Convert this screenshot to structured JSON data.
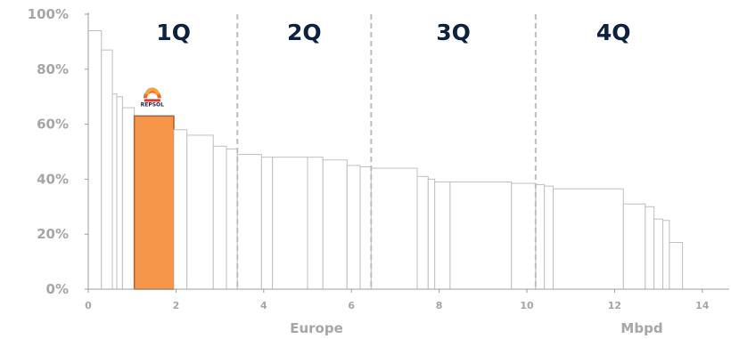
{
  "chart_data": {
    "type": "bar",
    "subtype": "variable-width cost curve (marimekko)",
    "xlabel": "Mbpd",
    "xlabel_secondary": "Europe",
    "x_ticks": [
      0,
      2,
      4,
      6,
      8,
      10,
      12,
      14
    ],
    "xlim": [
      0,
      14.5
    ],
    "y_ticks": [
      "0%",
      "20%",
      "40%",
      "60%",
      "80%",
      "100%"
    ],
    "ylim": [
      0,
      100
    ],
    "grid": false,
    "highlight_color": "#f5964b",
    "quartiles": [
      {
        "label": "1Q",
        "end_x": 3.4
      },
      {
        "label": "2Q",
        "end_x": 6.45
      },
      {
        "label": "3Q",
        "end_x": 10.2
      },
      {
        "label": "4Q",
        "end_x": 14.5
      }
    ],
    "logo": {
      "text": "REPSOL",
      "x": 1.5
    },
    "bars": [
      {
        "x0": 0.0,
        "x1": 0.3,
        "value": 94
      },
      {
        "x0": 0.3,
        "x1": 0.55,
        "value": 87
      },
      {
        "x0": 0.55,
        "x1": 0.65,
        "value": 71
      },
      {
        "x0": 0.65,
        "x1": 0.78,
        "value": 70
      },
      {
        "x0": 0.78,
        "x1": 1.05,
        "value": 66
      },
      {
        "x0": 1.05,
        "x1": 1.95,
        "value": 63,
        "highlight": true
      },
      {
        "x0": 1.95,
        "x1": 2.25,
        "value": 58
      },
      {
        "x0": 2.25,
        "x1": 2.85,
        "value": 56
      },
      {
        "x0": 2.85,
        "x1": 3.15,
        "value": 52
      },
      {
        "x0": 3.15,
        "x1": 3.4,
        "value": 51
      },
      {
        "x0": 3.4,
        "x1": 3.95,
        "value": 49
      },
      {
        "x0": 3.95,
        "x1": 4.2,
        "value": 48
      },
      {
        "x0": 4.2,
        "x1": 5.0,
        "value": 48
      },
      {
        "x0": 5.0,
        "x1": 5.35,
        "value": 48
      },
      {
        "x0": 5.35,
        "x1": 5.9,
        "value": 47
      },
      {
        "x0": 5.9,
        "x1": 6.2,
        "value": 45
      },
      {
        "x0": 6.2,
        "x1": 6.45,
        "value": 44.5
      },
      {
        "x0": 6.45,
        "x1": 7.5,
        "value": 44
      },
      {
        "x0": 7.5,
        "x1": 7.75,
        "value": 41
      },
      {
        "x0": 7.75,
        "x1": 7.9,
        "value": 40
      },
      {
        "x0": 7.9,
        "x1": 8.25,
        "value": 39
      },
      {
        "x0": 8.25,
        "x1": 9.65,
        "value": 39
      },
      {
        "x0": 9.65,
        "x1": 10.2,
        "value": 38.5
      },
      {
        "x0": 10.2,
        "x1": 10.4,
        "value": 38
      },
      {
        "x0": 10.4,
        "x1": 10.6,
        "value": 37.5
      },
      {
        "x0": 10.6,
        "x1": 12.2,
        "value": 36.5
      },
      {
        "x0": 12.2,
        "x1": 12.7,
        "value": 31
      },
      {
        "x0": 12.7,
        "x1": 12.9,
        "value": 30
      },
      {
        "x0": 12.9,
        "x1": 13.1,
        "value": 25.5
      },
      {
        "x0": 13.1,
        "x1": 13.25,
        "value": 25
      },
      {
        "x0": 13.25,
        "x1": 13.55,
        "value": 17
      }
    ]
  }
}
